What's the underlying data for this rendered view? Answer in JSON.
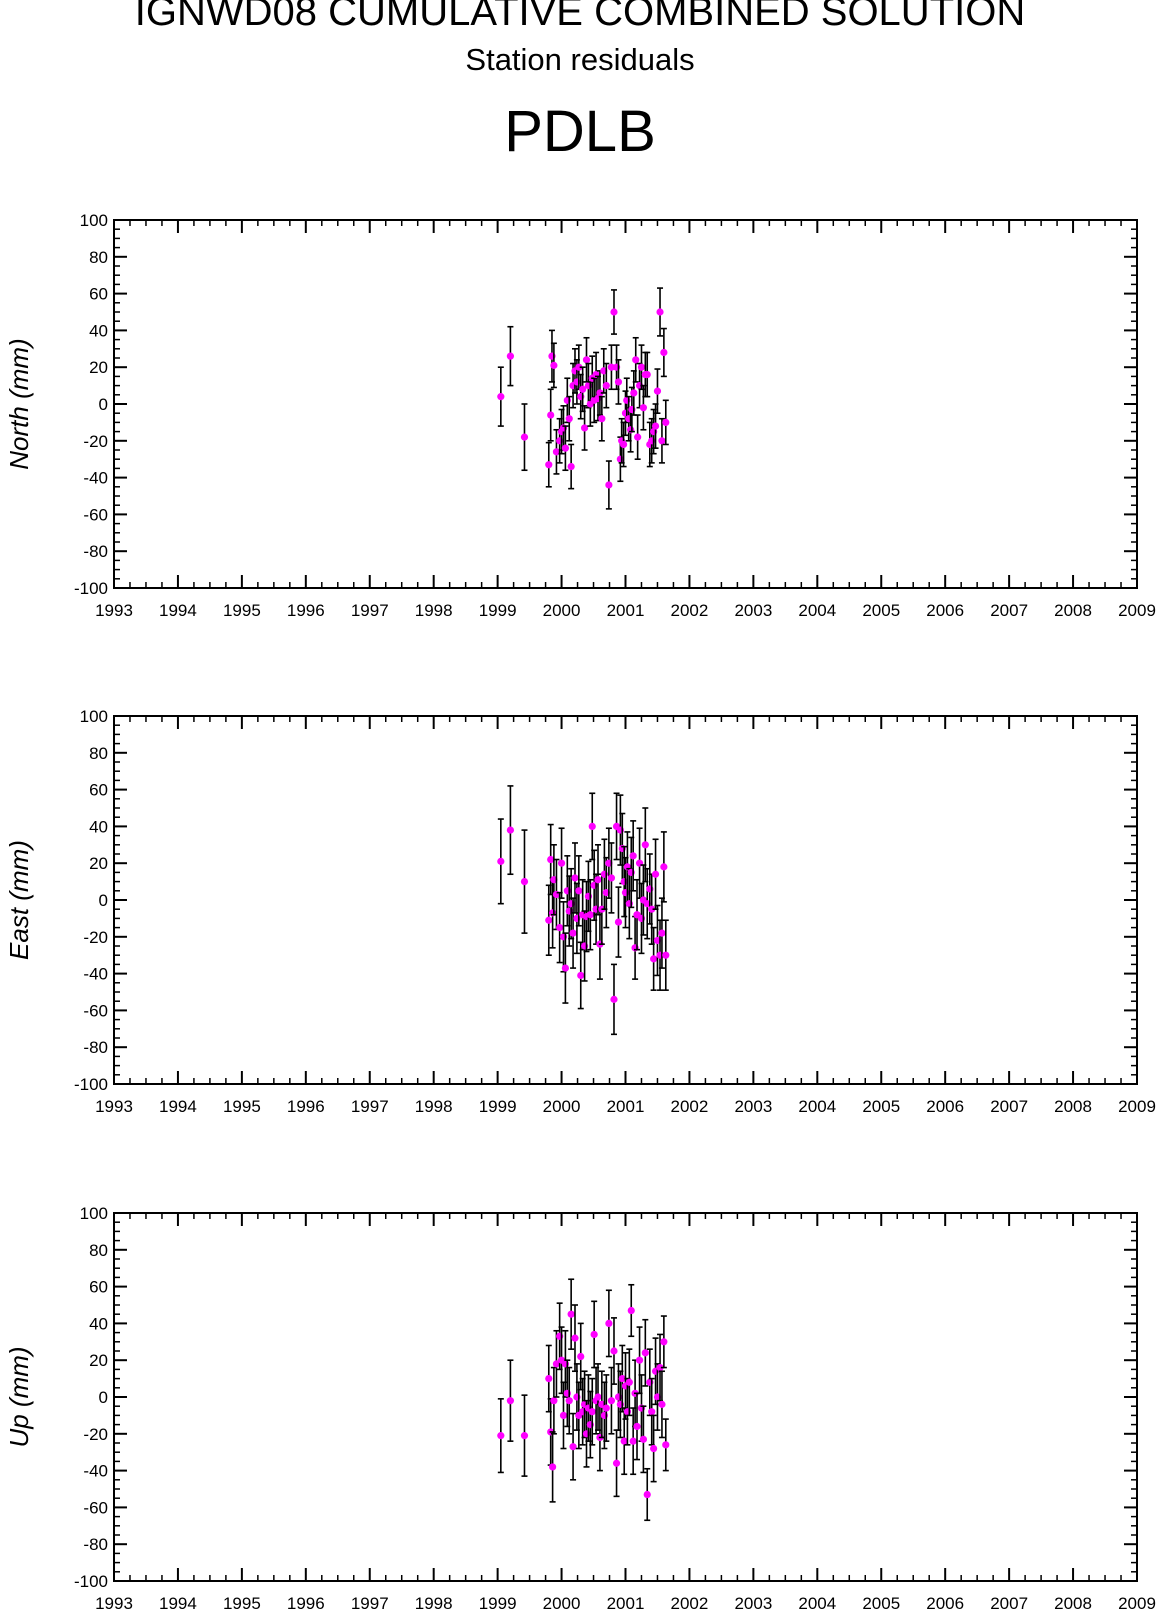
{
  "header": {
    "title": "IGNWD08 CUMULATIVE COMBINED SOLUTION",
    "subtitle": "Station residuals",
    "station": "PDLB"
  },
  "style": {
    "marker_color": "#ff00ff",
    "errorbar_color": "#000000"
  },
  "chart_data": [
    {
      "type": "scatter",
      "ylabel": "North (mm)",
      "xlim": [
        1993,
        2009
      ],
      "ylim": [
        -100,
        100
      ],
      "x_ticks": [
        1993,
        1994,
        1995,
        1996,
        1997,
        1998,
        1999,
        2000,
        2001,
        2002,
        2003,
        2004,
        2005,
        2006,
        2007,
        2008,
        2009
      ],
      "y_ticks": [
        100,
        80,
        60,
        40,
        20,
        0,
        -20,
        -40,
        -60,
        -80,
        -100
      ],
      "grid": false,
      "points": [
        [
          1999.05,
          4,
          16
        ],
        [
          1999.2,
          26,
          16
        ],
        [
          1999.42,
          -18,
          18
        ],
        [
          1999.8,
          -33,
          12
        ],
        [
          1999.83,
          -6,
          14
        ],
        [
          1999.85,
          26,
          14
        ],
        [
          1999.88,
          21,
          12
        ],
        [
          1999.92,
          -26,
          12
        ],
        [
          1999.97,
          -20,
          12
        ],
        [
          2000.0,
          -15,
          12
        ],
        [
          2000.03,
          -13,
          12
        ],
        [
          2000.06,
          -24,
          12
        ],
        [
          2000.09,
          2,
          12
        ],
        [
          2000.12,
          -8,
          12
        ],
        [
          2000.15,
          -34,
          12
        ],
        [
          2000.18,
          10,
          12
        ],
        [
          2000.21,
          18,
          12
        ],
        [
          2000.24,
          12,
          12
        ],
        [
          2000.27,
          20,
          12
        ],
        [
          2000.3,
          4,
          12
        ],
        [
          2000.33,
          8,
          12
        ],
        [
          2000.36,
          -13,
          12
        ],
        [
          2000.39,
          24,
          12
        ],
        [
          2000.42,
          10,
          12
        ],
        [
          2000.45,
          0,
          12
        ],
        [
          2000.48,
          14,
          12
        ],
        [
          2000.51,
          2,
          12
        ],
        [
          2000.54,
          16,
          12
        ],
        [
          2000.57,
          3,
          12
        ],
        [
          2000.6,
          6,
          12
        ],
        [
          2000.63,
          -8,
          12
        ],
        [
          2000.66,
          18,
          12
        ],
        [
          2000.7,
          10,
          12
        ],
        [
          2000.74,
          -44,
          13
        ],
        [
          2000.78,
          20,
          12
        ],
        [
          2000.82,
          50,
          12
        ],
        [
          2000.86,
          20,
          12
        ],
        [
          2000.89,
          12,
          12
        ],
        [
          2000.92,
          -30,
          12
        ],
        [
          2000.94,
          -20,
          12
        ],
        [
          2000.97,
          -22,
          12
        ],
        [
          2001.0,
          -5,
          12
        ],
        [
          2001.02,
          2,
          12
        ],
        [
          2001.05,
          -8,
          12
        ],
        [
          2001.08,
          -14,
          12
        ],
        [
          2001.1,
          -3,
          12
        ],
        [
          2001.13,
          6,
          12
        ],
        [
          2001.16,
          24,
          12
        ],
        [
          2001.19,
          -18,
          12
        ],
        [
          2001.22,
          10,
          12
        ],
        [
          2001.25,
          20,
          12
        ],
        [
          2001.28,
          -2,
          12
        ],
        [
          2001.31,
          16,
          12
        ],
        [
          2001.34,
          16,
          12
        ],
        [
          2001.38,
          -22,
          12
        ],
        [
          2001.41,
          -20,
          12
        ],
        [
          2001.44,
          -15,
          12
        ],
        [
          2001.47,
          -12,
          12
        ],
        [
          2001.5,
          7,
          12
        ],
        [
          2001.54,
          50,
          13
        ],
        [
          2001.57,
          -20,
          12
        ],
        [
          2001.6,
          28,
          13
        ],
        [
          2001.63,
          -10,
          12
        ]
      ]
    },
    {
      "type": "scatter",
      "ylabel": "East (mm)",
      "xlim": [
        1993,
        2009
      ],
      "ylim": [
        -100,
        100
      ],
      "x_ticks": [
        1993,
        1994,
        1995,
        1996,
        1997,
        1998,
        1999,
        2000,
        2001,
        2002,
        2003,
        2004,
        2005,
        2006,
        2007,
        2008,
        2009
      ],
      "y_ticks": [
        100,
        80,
        60,
        40,
        20,
        0,
        -20,
        -40,
        -60,
        -80,
        -100
      ],
      "grid": false,
      "points": [
        [
          1999.05,
          21,
          23
        ],
        [
          1999.2,
          38,
          24
        ],
        [
          1999.42,
          10,
          28
        ],
        [
          1999.8,
          -11,
          19
        ],
        [
          1999.83,
          22,
          19
        ],
        [
          1999.86,
          -7,
          19
        ],
        [
          1999.88,
          11,
          19
        ],
        [
          1999.92,
          3,
          19
        ],
        [
          1999.97,
          -15,
          19
        ],
        [
          2000.0,
          20,
          19
        ],
        [
          2000.03,
          -20,
          19
        ],
        [
          2000.06,
          -37,
          19
        ],
        [
          2000.09,
          5,
          19
        ],
        [
          2000.12,
          -6,
          19
        ],
        [
          2000.15,
          -2,
          19
        ],
        [
          2000.18,
          -18,
          19
        ],
        [
          2000.21,
          12,
          19
        ],
        [
          2000.24,
          -10,
          19
        ],
        [
          2000.27,
          5,
          19
        ],
        [
          2000.3,
          -41,
          18
        ],
        [
          2000.33,
          -8,
          19
        ],
        [
          2000.36,
          -25,
          19
        ],
        [
          2000.39,
          -9,
          19
        ],
        [
          2000.42,
          2,
          19
        ],
        [
          2000.45,
          -8,
          19
        ],
        [
          2000.48,
          40,
          18
        ],
        [
          2000.51,
          8,
          19
        ],
        [
          2000.54,
          -5,
          19
        ],
        [
          2000.57,
          11,
          19
        ],
        [
          2000.6,
          -24,
          19
        ],
        [
          2000.63,
          -5,
          19
        ],
        [
          2000.67,
          14,
          19
        ],
        [
          2000.7,
          4,
          19
        ],
        [
          2000.74,
          20,
          19
        ],
        [
          2000.78,
          12,
          19
        ],
        [
          2000.82,
          -54,
          19
        ],
        [
          2000.86,
          40,
          18
        ],
        [
          2000.89,
          -12,
          19
        ],
        [
          2000.92,
          38,
          19
        ],
        [
          2000.95,
          28,
          19
        ],
        [
          2000.98,
          10,
          19
        ],
        [
          2001.0,
          4,
          19
        ],
        [
          2001.03,
          18,
          19
        ],
        [
          2001.06,
          -2,
          19
        ],
        [
          2001.09,
          15,
          19
        ],
        [
          2001.12,
          24,
          19
        ],
        [
          2001.15,
          -26,
          17
        ],
        [
          2001.18,
          -8,
          19
        ],
        [
          2001.22,
          20,
          19
        ],
        [
          2001.25,
          -10,
          19
        ],
        [
          2001.28,
          0,
          19
        ],
        [
          2001.31,
          30,
          20
        ],
        [
          2001.34,
          -2,
          19
        ],
        [
          2001.38,
          6,
          19
        ],
        [
          2001.41,
          -5,
          19
        ],
        [
          2001.44,
          -32,
          17
        ],
        [
          2001.47,
          14,
          19
        ],
        [
          2001.5,
          -22,
          19
        ],
        [
          2001.54,
          -30,
          19
        ],
        [
          2001.57,
          -18,
          19
        ],
        [
          2001.6,
          18,
          19
        ],
        [
          2001.63,
          -30,
          19
        ]
      ]
    },
    {
      "type": "scatter",
      "ylabel": "Up (mm)",
      "xlim": [
        1993,
        2009
      ],
      "ylim": [
        -100,
        100
      ],
      "x_ticks": [
        1993,
        1994,
        1995,
        1996,
        1997,
        1998,
        1999,
        2000,
        2001,
        2002,
        2003,
        2004,
        2005,
        2006,
        2007,
        2008,
        2009
      ],
      "y_ticks": [
        100,
        80,
        60,
        40,
        20,
        0,
        -20,
        -40,
        -60,
        -80,
        -100
      ],
      "grid": false,
      "points": [
        [
          1999.05,
          -21,
          20
        ],
        [
          1999.2,
          -2,
          22
        ],
        [
          1999.42,
          -21,
          22
        ],
        [
          1999.8,
          10,
          18
        ],
        [
          1999.83,
          -19,
          18
        ],
        [
          1999.86,
          -38,
          19
        ],
        [
          1999.88,
          -2,
          18
        ],
        [
          1999.92,
          18,
          18
        ],
        [
          1999.97,
          33,
          18
        ],
        [
          2000.0,
          20,
          18
        ],
        [
          2000.03,
          -10,
          18
        ],
        [
          2000.06,
          18,
          18
        ],
        [
          2000.09,
          2,
          18
        ],
        [
          2000.12,
          -2,
          18
        ],
        [
          2000.15,
          45,
          19
        ],
        [
          2000.18,
          -27,
          18
        ],
        [
          2000.21,
          32,
          18
        ],
        [
          2000.24,
          0,
          18
        ],
        [
          2000.27,
          -10,
          18
        ],
        [
          2000.3,
          22,
          18
        ],
        [
          2000.33,
          -8,
          18
        ],
        [
          2000.36,
          -4,
          18
        ],
        [
          2000.39,
          -20,
          18
        ],
        [
          2000.42,
          -6,
          18
        ],
        [
          2000.45,
          -15,
          18
        ],
        [
          2000.48,
          -8,
          18
        ],
        [
          2000.51,
          34,
          18
        ],
        [
          2000.54,
          -2,
          18
        ],
        [
          2000.57,
          0,
          18
        ],
        [
          2000.6,
          -22,
          18
        ],
        [
          2000.63,
          -4,
          18
        ],
        [
          2000.67,
          -10,
          18
        ],
        [
          2000.7,
          -6,
          18
        ],
        [
          2000.74,
          40,
          18
        ],
        [
          2000.78,
          -2,
          18
        ],
        [
          2000.82,
          25,
          18
        ],
        [
          2000.86,
          -36,
          18
        ],
        [
          2000.89,
          0,
          18
        ],
        [
          2000.92,
          -4,
          18
        ],
        [
          2000.95,
          10,
          18
        ],
        [
          2000.98,
          -24,
          18
        ],
        [
          2001.0,
          6,
          18
        ],
        [
          2001.03,
          -8,
          18
        ],
        [
          2001.06,
          8,
          18
        ],
        [
          2001.09,
          47,
          14
        ],
        [
          2001.12,
          -24,
          18
        ],
        [
          2001.15,
          2,
          18
        ],
        [
          2001.18,
          -16,
          18
        ],
        [
          2001.22,
          20,
          18
        ],
        [
          2001.25,
          -6,
          18
        ],
        [
          2001.28,
          -23,
          18
        ],
        [
          2001.31,
          24,
          18
        ],
        [
          2001.34,
          -53,
          14
        ],
        [
          2001.38,
          8,
          18
        ],
        [
          2001.41,
          -8,
          18
        ],
        [
          2001.44,
          -28,
          18
        ],
        [
          2001.47,
          14,
          18
        ],
        [
          2001.5,
          0,
          18
        ],
        [
          2001.54,
          16,
          18
        ],
        [
          2001.57,
          -4,
          18
        ],
        [
          2001.6,
          30,
          14
        ],
        [
          2001.63,
          -26,
          14
        ]
      ]
    }
  ]
}
